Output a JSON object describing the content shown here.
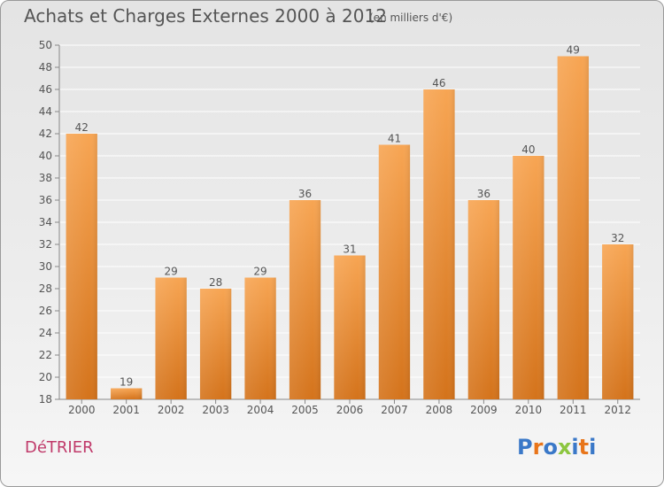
{
  "header": {
    "title": "Achats et Charges Externes 2000 à 2012",
    "unit": "(en milliers d'€)"
  },
  "footer": {
    "commune": "DéTRIER",
    "logo": "Proxiti",
    "logo_colors": [
      "#3a78c8",
      "#e8751a",
      "#3a78c8",
      "#8cc63f",
      "#3a78c8",
      "#e8751a",
      "#3a78c8"
    ]
  },
  "colors": {
    "bar_top": "#f7a553",
    "bar_bottom": "#d4731b",
    "grid": "#ffffff",
    "text": "#555555"
  },
  "chart_data": {
    "type": "bar",
    "categories": [
      "2000",
      "2001",
      "2002",
      "2003",
      "2004",
      "2005",
      "2006",
      "2007",
      "2008",
      "2009",
      "2010",
      "2011",
      "2012"
    ],
    "values": [
      42,
      19,
      29,
      28,
      29,
      36,
      31,
      41,
      46,
      36,
      40,
      49,
      32
    ],
    "data_labels": [
      "42",
      "19",
      "29",
      "28",
      "29",
      "36",
      "31",
      "41",
      "46",
      "36",
      "40",
      "49",
      "32"
    ],
    "ylim": [
      18,
      50
    ],
    "yticks": [
      18,
      20,
      22,
      24,
      26,
      28,
      30,
      32,
      34,
      36,
      38,
      40,
      42,
      44,
      46,
      48,
      50
    ],
    "grid": true,
    "legend": "none",
    "xlabel": "",
    "ylabel": ""
  }
}
